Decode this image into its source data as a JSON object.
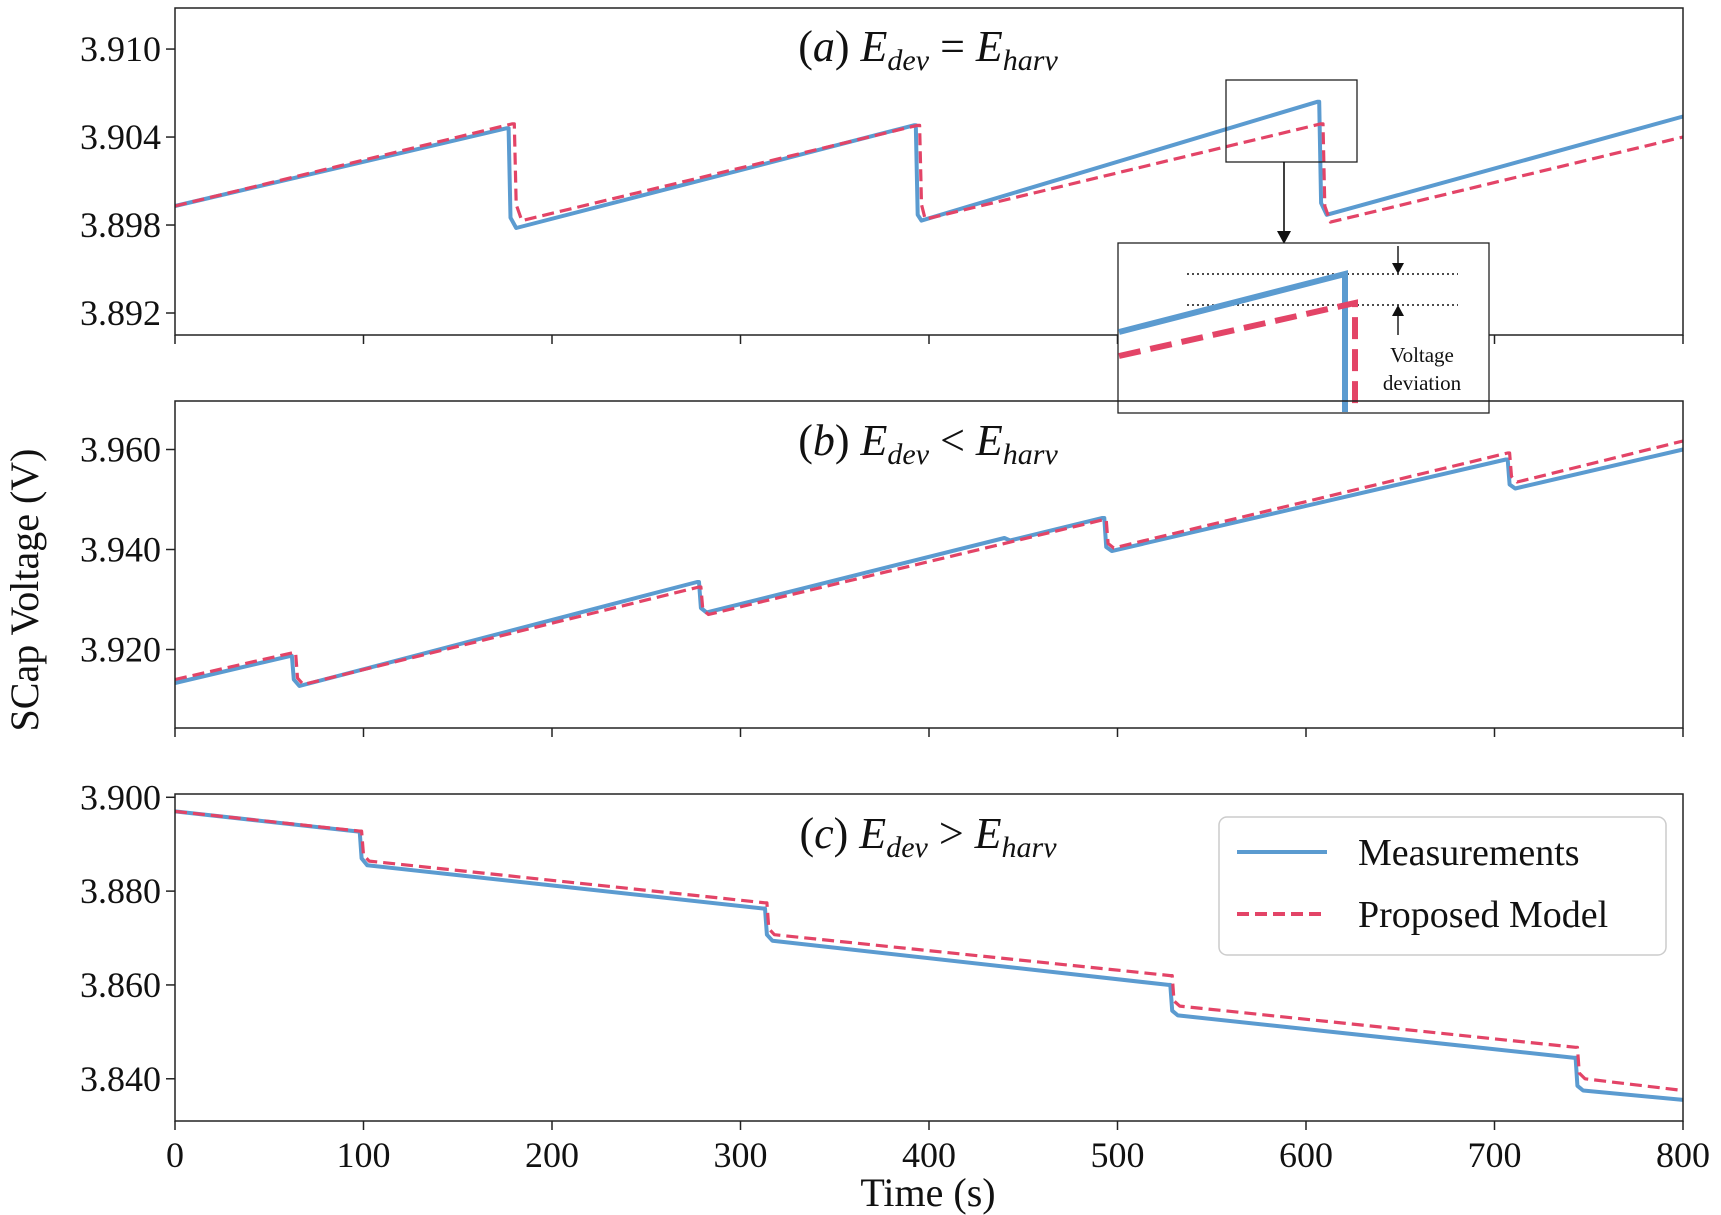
{
  "chart_data": {
    "type": "line",
    "ylabel": "SCap Voltage (V)",
    "xlabel": "Time (s)",
    "xlim": [
      0,
      800
    ],
    "xticks": [
      "0",
      "100",
      "200",
      "300",
      "400",
      "500",
      "600",
      "700",
      "800"
    ],
    "colors": {
      "measurements": "#5b9bd0",
      "model": "#e34467"
    },
    "legend": {
      "position": "lower-right of panel (c)",
      "entries": [
        "Measurements",
        "Proposed Model"
      ]
    },
    "panels": [
      {
        "id": "a",
        "title": {
          "prefix": "(",
          "letter": "a",
          "close": ") ",
          "lhs": "E",
          "lhs_sub": "dev",
          "rel": " = ",
          "rhs": "E",
          "rhs_sub": "harv"
        },
        "ylim": [
          3.8905,
          3.9128
        ],
        "yticks": [
          "3.910",
          "3.904",
          "3.898",
          "3.892"
        ],
        "series": [
          {
            "name": "Measurements",
            "x": [
              0,
              176,
              177,
              178,
              181,
              392,
              393,
              394,
              396,
              606,
              607,
              608,
              611,
              800
            ],
            "y": [
              3.8993,
              3.9046,
              3.9046,
              3.8985,
              3.8978,
              3.9048,
              3.9048,
              3.8987,
              3.8983,
              3.9064,
              3.9064,
              3.8995,
              3.8987,
              3.9054
            ]
          },
          {
            "name": "Proposed Model",
            "x": [
              0,
              179,
              180,
              181,
              184,
              394,
              395,
              396,
              398,
              608,
              609,
              610,
              613,
              800
            ],
            "y": [
              3.8993,
              3.9049,
              3.9049,
              3.8994,
              3.8983,
              3.9048,
              3.9048,
              3.8994,
              3.8984,
              3.9049,
              3.9049,
              3.8993,
              3.8982,
              3.904
            ]
          }
        ],
        "inset": {
          "label_line1": "Voltage",
          "label_line2": "deviation"
        }
      },
      {
        "id": "b",
        "title": {
          "prefix": "(",
          "letter": "b",
          "close": ") ",
          "lhs": "E",
          "lhs_sub": "dev",
          "rel": " < ",
          "rhs": "E",
          "rhs_sub": "harv"
        },
        "ylim": [
          3.9043,
          3.9697
        ],
        "yticks": [
          "3.960",
          "3.940",
          "3.920"
        ],
        "series": [
          {
            "name": "Measurements",
            "x": [
              0,
              61,
              62,
              63,
              66,
              277,
              278,
              279,
              282,
              440,
              443,
              492,
              493,
              494,
              497,
              706,
              707,
              708,
              711,
              800
            ],
            "y": [
              3.9133,
              3.9187,
              3.9187,
              3.914,
              3.9127,
              3.9335,
              3.9335,
              3.9283,
              3.9274,
              3.9423,
              3.9418,
              3.9463,
              3.9463,
              3.9405,
              3.9397,
              3.958,
              3.958,
              3.953,
              3.9522,
              3.96
            ]
          },
          {
            "name": "Proposed Model",
            "x": [
              0,
              63,
              64,
              65,
              68,
              278,
              279,
              280,
              283,
              493,
              494,
              495,
              498,
              707,
              708,
              709,
              712,
              800
            ],
            "y": [
              3.914,
              3.9194,
              3.9194,
              3.9143,
              3.913,
              3.9325,
              3.9325,
              3.928,
              3.927,
              3.946,
              3.946,
              3.9412,
              3.9403,
              3.9593,
              3.9593,
              3.9546,
              3.9535,
              3.9617
            ]
          }
        ]
      },
      {
        "id": "c",
        "title": {
          "prefix": "(",
          "letter": "c",
          "close": ") ",
          "lhs": "E",
          "lhs_sub": "dev",
          "rel": " > ",
          "rhs": "E",
          "rhs_sub": "harv"
        },
        "ylim": [
          3.831,
          3.9007
        ],
        "yticks": [
          "3.900",
          "3.880",
          "3.860",
          "3.840"
        ],
        "series": [
          {
            "name": "Measurements",
            "x": [
              0,
              97,
              98,
              99,
              102,
              312,
              313,
              314,
              317,
              527,
              528,
              529,
              532,
              742,
              743,
              744,
              747,
              800
            ],
            "y": [
              3.897,
              3.8927,
              3.8927,
              3.887,
              3.8855,
              3.8763,
              3.8763,
              3.8707,
              3.8694,
              3.86,
              3.86,
              3.8545,
              3.8535,
              3.8445,
              3.8445,
              3.8385,
              3.8375,
              3.8355
            ]
          },
          {
            "name": "Proposed Model",
            "x": [
              0,
              98,
              99,
              100,
              103,
              313,
              314,
              315,
              318,
              528,
              529,
              530,
              533,
              743,
              744,
              745,
              748,
              800
            ],
            "y": [
              3.897,
              3.8928,
              3.8928,
              3.8877,
              3.8864,
              3.8775,
              3.8775,
              3.872,
              3.8707,
              3.862,
              3.862,
              3.8566,
              3.8555,
              3.8467,
              3.8467,
              3.8412,
              3.84,
              3.8375
            ]
          }
        ]
      }
    ]
  }
}
